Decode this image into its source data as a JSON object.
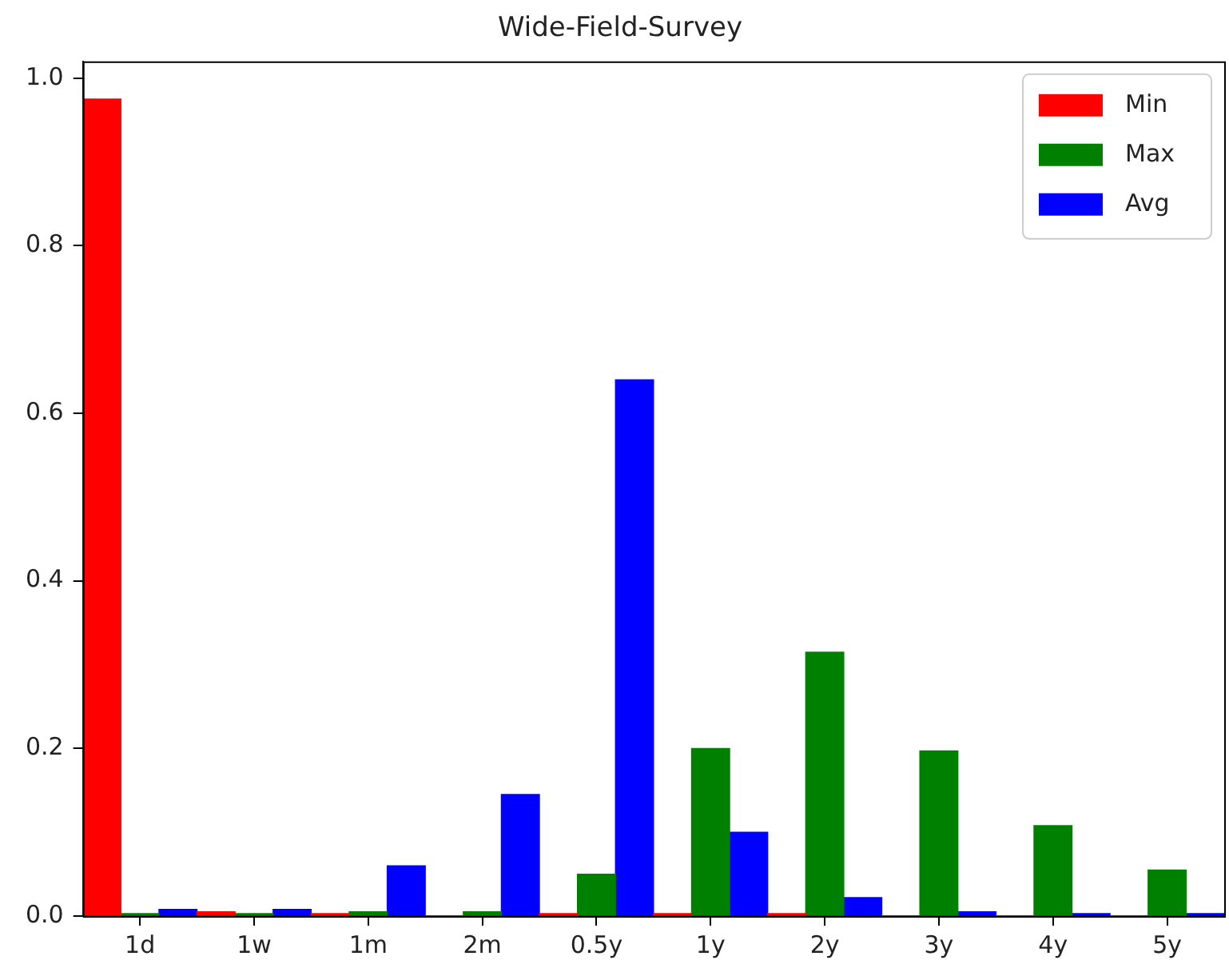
{
  "chart_data": {
    "type": "bar",
    "title": "Wide-Field-Survey",
    "categories": [
      "1d",
      "1w",
      "1m",
      "2m",
      "0.5y",
      "1y",
      "2y",
      "3y",
      "4y",
      "5y"
    ],
    "series": [
      {
        "name": "Min",
        "color": "#ff0000",
        "values": [
          0.975,
          0.005,
          0.003,
          0,
          0.003,
          0.003,
          0.003,
          0,
          0,
          0
        ]
      },
      {
        "name": "Max",
        "color": "#008000",
        "values": [
          0.003,
          0.003,
          0.005,
          0.005,
          0.05,
          0.2,
          0.315,
          0.197,
          0.108,
          0.055
        ]
      },
      {
        "name": "Avg",
        "color": "#0000ff",
        "values": [
          0.008,
          0.008,
          0.06,
          0.145,
          0.64,
          0.1,
          0.022,
          0.005,
          0.003,
          0.003
        ]
      }
    ],
    "ylim": [
      0,
      1.02
    ],
    "yticks": [
      {
        "value": 0,
        "label": "0.0"
      },
      0.2,
      0.4,
      0.6,
      0.8,
      {
        "value": 1,
        "label": "1.0"
      }
    ],
    "grid": false,
    "legend": "top right"
  }
}
